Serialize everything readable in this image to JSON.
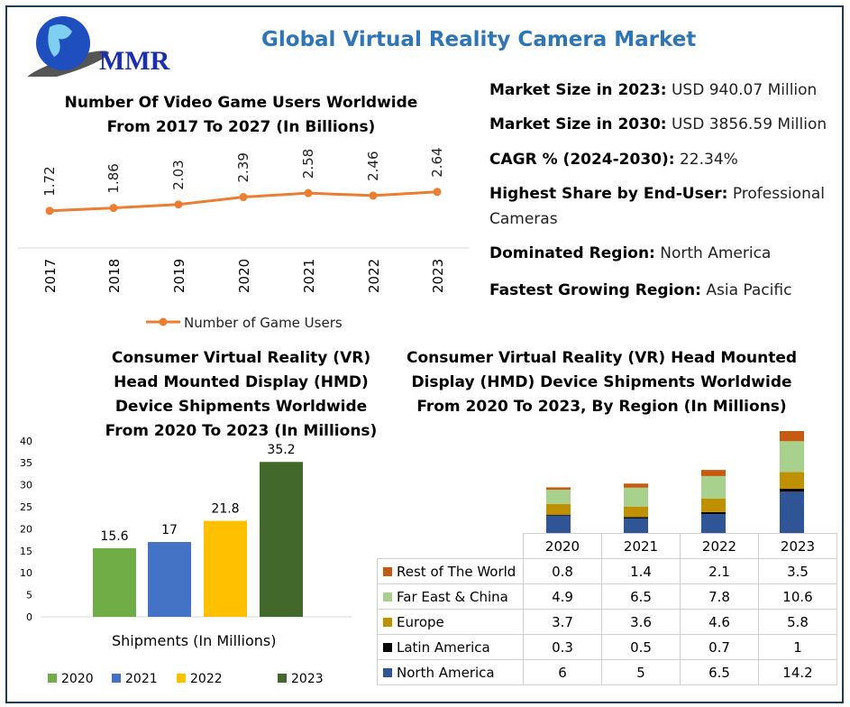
{
  "title": "Global Virtual Reality Camera Market",
  "logo_text": "MMR",
  "info": [
    {
      "label": "Market Size in 2023:",
      "value": "USD 940.07 Million"
    },
    {
      "label": "Market Size in 2030:",
      "value": "USD 3856.59 Million"
    },
    {
      "label": "CAGR % (2024-2030):",
      "value": "22.34%"
    },
    {
      "label": "Highest Share by End-User:",
      "value": "Professional",
      "value2": "Cameras"
    },
    {
      "label": "Dominated Region:",
      "value": "North America"
    },
    {
      "label": "Fastest Growing Region:",
      "value": "Asia Pacific"
    }
  ],
  "colors": {
    "title": "#2e75b6",
    "line": "#ed7d31"
  },
  "chart_data": [
    {
      "type": "line",
      "title": "Number Of Video Game Users Worldwide",
      "title2": "From 2017 To 2027 (In Billions)",
      "categories": [
        "2017",
        "2018",
        "2019",
        "2020",
        "2021",
        "2022",
        "2023"
      ],
      "series": [
        {
          "name": "Number of Game Users",
          "values": [
            1.72,
            1.86,
            2.03,
            2.39,
            2.58,
            2.46,
            2.64
          ],
          "color": "#ed7d31"
        }
      ],
      "legend": "bottom",
      "grid": false
    },
    {
      "type": "bar",
      "title_lines": [
        "Consumer Virtual Reality (VR)",
        "Head Mounted Display (HMD)",
        "Device Shipments Worldwide",
        "From 2020 To 2023 (In Millions)"
      ],
      "categories": [
        "2020",
        "2021",
        "2022",
        "2023"
      ],
      "values": [
        15.6,
        17,
        21.8,
        35.2
      ],
      "colors": [
        "#70ad47",
        "#4472c4",
        "#ffc000",
        "#43682b"
      ],
      "xlabel": "Shipments (In Millions)",
      "ylim": [
        0,
        40
      ],
      "yticks": [
        "0",
        "5",
        "10",
        "15",
        "20",
        "25",
        "30",
        "35",
        "40"
      ],
      "legend": "bottom",
      "grid": false
    },
    {
      "type": "bar",
      "stacked": true,
      "title_lines": [
        "Consumer Virtual Reality (VR) Head Mounted",
        "Display (HMD) Device Shipments Worldwide",
        "From 2020 To 2023, By Region (In Millions)"
      ],
      "categories": [
        "2020",
        "2021",
        "2022",
        "2023"
      ],
      "series": [
        {
          "name": "Rest of The World",
          "values": [
            "0.8",
            "1.4",
            "2.1",
            "3.5"
          ],
          "color": "#c55a11"
        },
        {
          "name": "Far East & China",
          "values": [
            "4.9",
            "6.5",
            "7.8",
            "10.6"
          ],
          "color": "#a9d18e"
        },
        {
          "name": "Europe",
          "values": [
            "3.7",
            "3.6",
            "4.6",
            "5.8"
          ],
          "color": "#bf9000"
        },
        {
          "name": "Latin America",
          "values": [
            "0.3",
            "0.5",
            "0.7",
            "1"
          ],
          "color": "#000000"
        },
        {
          "name": "North America",
          "values": [
            "6",
            "5",
            "6.5",
            "14.2"
          ],
          "color": "#2f5597"
        }
      ],
      "legend": "data-table"
    }
  ]
}
